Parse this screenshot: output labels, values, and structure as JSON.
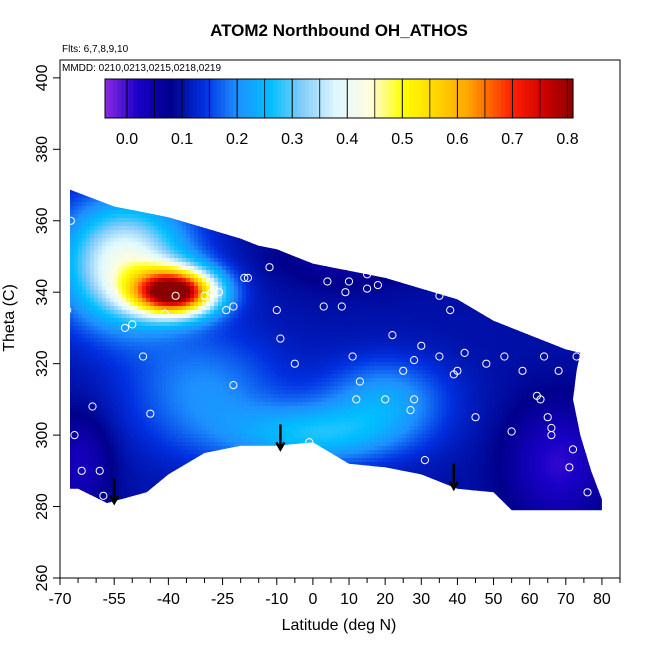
{
  "chart_data": {
    "type": "heatmap",
    "title": "ATOM2 Northbound OH_ATHOS",
    "subtitle_flights": "Flts: 6,7,8,9,10",
    "subtitle_dates": "MMDD: 0210,0213,0215,0218,0219",
    "xlabel": "Latitude (deg N)",
    "ylabel": "Theta (C)",
    "xlim": [
      -70,
      85
    ],
    "ylim": [
      260,
      405
    ],
    "x_major_ticks": [
      -70,
      -55,
      -40,
      -25,
      -10,
      0,
      10,
      20,
      30,
      40,
      50,
      60,
      70,
      80
    ],
    "x_minor_ticks": [
      -65,
      -60,
      -50,
      -45,
      -35,
      -30,
      -20,
      -15,
      -5,
      5,
      15,
      25,
      35,
      45,
      55,
      65,
      75,
      85
    ],
    "y_ticks": [
      260,
      280,
      300,
      320,
      340,
      360,
      380,
      400
    ],
    "colorbar": {
      "ticks": [
        0.0,
        0.1,
        0.2,
        0.3,
        0.4,
        0.5,
        0.6,
        0.7,
        0.8
      ],
      "tick_labels": [
        "0.0",
        "0.1",
        "0.2",
        "0.3",
        "0.4",
        "0.5",
        "0.6",
        "0.7",
        "0.8"
      ],
      "range": [
        -0.04,
        0.81
      ]
    },
    "color_stops": [
      {
        "v": -0.04,
        "c": "#8a2be2"
      },
      {
        "v": 0.02,
        "c": "#1a00c8"
      },
      {
        "v": 0.08,
        "c": "#00008b"
      },
      {
        "v": 0.14,
        "c": "#0030e0"
      },
      {
        "v": 0.2,
        "c": "#1e90ff"
      },
      {
        "v": 0.26,
        "c": "#00bfff"
      },
      {
        "v": 0.32,
        "c": "#87cefa"
      },
      {
        "v": 0.38,
        "c": "#e0f8ff"
      },
      {
        "v": 0.44,
        "c": "#fffde0"
      },
      {
        "v": 0.5,
        "c": "#ffff00"
      },
      {
        "v": 0.56,
        "c": "#ffd700"
      },
      {
        "v": 0.62,
        "c": "#ffa500"
      },
      {
        "v": 0.7,
        "c": "#ff2000"
      },
      {
        "v": 0.76,
        "c": "#cc0000"
      },
      {
        "v": 0.81,
        "c": "#8b0000"
      }
    ],
    "domain_top": [
      [
        -68,
        369
      ],
      [
        -55,
        364
      ],
      [
        -45,
        362
      ],
      [
        -40,
        361
      ],
      [
        -30,
        358
      ],
      [
        -20,
        355
      ],
      [
        -15,
        353
      ],
      [
        -10,
        352
      ],
      [
        -5,
        350
      ],
      [
        0,
        348
      ],
      [
        5,
        347
      ],
      [
        10,
        346
      ],
      [
        20,
        344
      ],
      [
        30,
        341
      ],
      [
        40,
        338
      ],
      [
        50,
        332
      ],
      [
        60,
        328
      ],
      [
        70,
        324
      ],
      [
        74,
        323
      ]
    ],
    "domain_bottom": [
      [
        -69,
        285
      ],
      [
        -65,
        285
      ],
      [
        -57,
        281
      ],
      [
        -46,
        284
      ],
      [
        -40,
        289
      ],
      [
        -30,
        295
      ],
      [
        -20,
        297
      ],
      [
        -10,
        297
      ],
      [
        0,
        298
      ],
      [
        10,
        292
      ],
      [
        20,
        291
      ],
      [
        30,
        289
      ],
      [
        40,
        285
      ],
      [
        50,
        284
      ],
      [
        55,
        279
      ],
      [
        66,
        279
      ],
      [
        80,
        279
      ],
      [
        80,
        282
      ],
      [
        77,
        290
      ],
      [
        74,
        300
      ],
      [
        72,
        310
      ],
      [
        73,
        318
      ],
      [
        74,
        323
      ]
    ],
    "hotspot": {
      "lat": -38,
      "theta": 340,
      "value": 0.78
    },
    "secondary_high": {
      "lat": 0,
      "theta": 300,
      "value": 0.28
    },
    "observation_points": [
      [
        -67,
        360
      ],
      [
        -68,
        335
      ],
      [
        -66,
        300
      ],
      [
        -64,
        290
      ],
      [
        -61,
        308
      ],
      [
        -59,
        290
      ],
      [
        -58,
        283
      ],
      [
        -52,
        330
      ],
      [
        -50,
        331
      ],
      [
        -47,
        322
      ],
      [
        -45,
        306
      ],
      [
        -41,
        334
      ],
      [
        -38,
        339
      ],
      [
        -30,
        339
      ],
      [
        -28,
        340
      ],
      [
        -26,
        340
      ],
      [
        -24,
        335
      ],
      [
        -22,
        336
      ],
      [
        -22,
        314
      ],
      [
        -19,
        344
      ],
      [
        -18,
        344
      ],
      [
        -12,
        347
      ],
      [
        -10,
        335
      ],
      [
        -9,
        327
      ],
      [
        -5,
        320
      ],
      [
        -1,
        298
      ],
      [
        3,
        336
      ],
      [
        4,
        343
      ],
      [
        8,
        336
      ],
      [
        9,
        340
      ],
      [
        10,
        343
      ],
      [
        11,
        322
      ],
      [
        12,
        310
      ],
      [
        13,
        315
      ],
      [
        15,
        341
      ],
      [
        15,
        345
      ],
      [
        18,
        342
      ],
      [
        20,
        310
      ],
      [
        22,
        328
      ],
      [
        25,
        318
      ],
      [
        27,
        307
      ],
      [
        28,
        321
      ],
      [
        28,
        310
      ],
      [
        30,
        325
      ],
      [
        31,
        293
      ],
      [
        35,
        322
      ],
      [
        35,
        339
      ],
      [
        38,
        335
      ],
      [
        39,
        317
      ],
      [
        40,
        318
      ],
      [
        42,
        323
      ],
      [
        45,
        305
      ],
      [
        48,
        320
      ],
      [
        53,
        322
      ],
      [
        55,
        301
      ],
      [
        56,
        332
      ],
      [
        58,
        318
      ],
      [
        62,
        311
      ],
      [
        63,
        310
      ],
      [
        64,
        322
      ],
      [
        65,
        305
      ],
      [
        66,
        302
      ],
      [
        66,
        300
      ],
      [
        68,
        318
      ],
      [
        71,
        291
      ],
      [
        72,
        296
      ],
      [
        73,
        322
      ],
      [
        76,
        284
      ]
    ],
    "flight_arrows": [
      {
        "lat": -55,
        "theta_start": 288,
        "theta_end": 281
      },
      {
        "lat": -9,
        "theta_start": 303,
        "theta_end": 296
      },
      {
        "lat": 39,
        "theta_start": 292,
        "theta_end": 285
      }
    ]
  }
}
